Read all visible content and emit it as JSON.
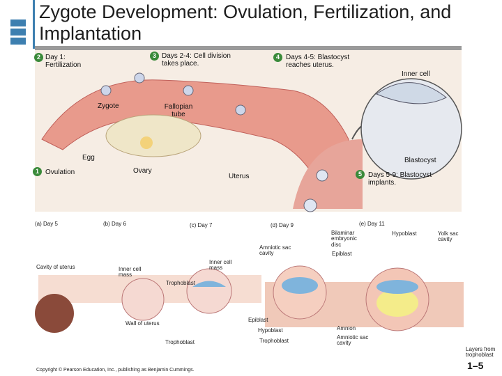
{
  "header": {
    "title": "Zygote Development: Ovulation, Fertilization, and Implantation"
  },
  "steps": [
    {
      "number": "1",
      "text": "Ovulation"
    },
    {
      "number": "2",
      "text": "Day 1: Fertilization"
    },
    {
      "number": "3",
      "text": "Days 2-4: Cell division takes place."
    },
    {
      "number": "4",
      "text": "Days 4-5: Blastocyst reaches uterus."
    },
    {
      "number": "5",
      "text": "Days 5-9: Blastocyst implants."
    }
  ],
  "labels": [
    "Inner cell",
    "Zygote",
    "Fallopian tube",
    "Egg",
    "Blastocyst",
    "Ovary",
    "Uterus"
  ],
  "panels": [
    "(a) Day 5",
    "(b) Day 6",
    "(c) Day 7",
    "(d) Day 9",
    "(e) Day 11"
  ],
  "panel_labels": [
    "Cavity of uterus",
    "Inner cell mass",
    "Trophoblast",
    "Inner cell mass",
    "Amniotic sac cavity",
    "Bilaminar embryonic disc",
    "Epiblast",
    "Hypoblast",
    "Yolk sac cavity",
    "Epiblast",
    "Hypoblast",
    "Trophoblast",
    "Wall of uterus",
    "Trophoblast",
    "Amnion",
    "Amniotic sac cavity",
    "Layers from trophoblast"
  ],
  "footer": {
    "copyright": "Copyright © Pearson Education, Inc., publishing as Benjamin Cummings.",
    "page": "1–5"
  }
}
